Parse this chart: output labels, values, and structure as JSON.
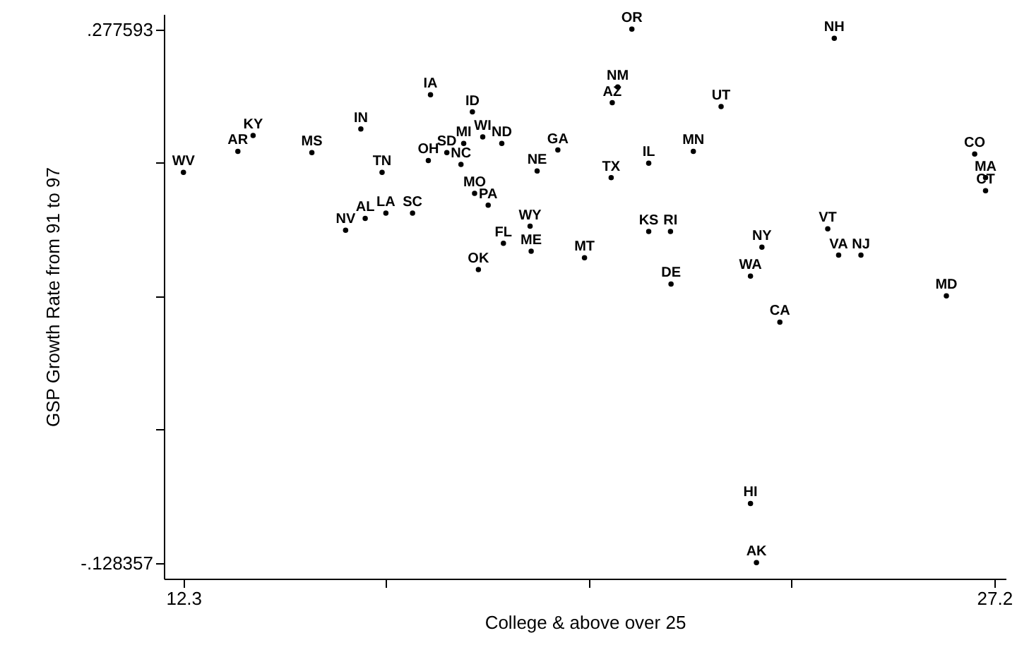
{
  "chart_data": {
    "type": "scatter",
    "xlabel": "College & above over 25",
    "ylabel": "GSP Growth Rate from 91 to 97",
    "xlim": [
      11.94,
      27.41
    ],
    "ylim": [
      -0.1402,
      0.2894
    ],
    "xticks": [
      12.3,
      {
        "value": 16.025,
        "label": null
      },
      {
        "value": 19.75,
        "label": null
      },
      {
        "value": 23.475,
        "label": null
      },
      27.2
    ],
    "yticks": [
      {
        "value": -0.128357,
        "label": "-.128357"
      },
      {
        "value": -0.0268695,
        "label": null
      },
      {
        "value": 0.074618,
        "label": null
      },
      {
        "value": 0.1761055,
        "label": null
      },
      {
        "value": 0.277593,
        "label": ".277593"
      }
    ],
    "grid": false,
    "marker": "circle",
    "series": [
      {
        "color": "#000000",
        "x": [
          12.3,
          13.3,
          13.58,
          14.66,
          15.56,
          15.95,
          15.28,
          15.64,
          16.02,
          16.51,
          16.84,
          17.61,
          16.8,
          17.14,
          17.45,
          17.8,
          17.4,
          18.15,
          17.65,
          17.9,
          17.72,
          19.18,
          18.8,
          18.67,
          18.18,
          18.69,
          19.67,
          20.54,
          20.28,
          20.18,
          20.16,
          20.85,
          22.18,
          21.67,
          20.85,
          21.25,
          21.26,
          22.93,
          22.72,
          23.26,
          22.72,
          22.83,
          24.26,
          24.14,
          24.34,
          24.75,
          26.32,
          26.84,
          27.04,
          27.04
        ],
        "values": [
          0.169,
          0.185,
          0.197,
          0.184,
          0.202,
          0.169,
          0.125,
          0.134,
          0.138,
          0.138,
          0.228,
          0.215,
          0.178,
          0.184,
          0.191,
          0.196,
          0.175,
          0.191,
          0.153,
          0.144,
          0.095,
          0.186,
          0.17,
          0.128,
          0.115,
          0.109,
          0.104,
          0.278,
          0.234,
          0.222,
          0.165,
          0.176,
          0.219,
          0.185,
          0.124,
          0.124,
          0.084,
          0.112,
          0.09,
          0.055,
          -0.083,
          -0.128,
          0.271,
          0.126,
          0.106,
          0.106,
          0.075,
          0.183,
          0.165,
          0.155
        ],
        "value_labels": [
          "WV",
          "AR",
          "KY",
          "MS",
          "IN",
          "TN",
          "NV",
          "AL",
          "LA",
          "SC",
          "IA",
          "ID",
          "OH",
          "SD",
          "MI",
          "WI",
          "NC",
          "ND",
          "MO",
          "PA",
          "OK",
          "GA",
          "NE",
          "WY",
          "FL",
          "ME",
          "MT",
          "OR",
          "NM",
          "AZ",
          "TX",
          "IL",
          "UT",
          "MN",
          "KS",
          "RI",
          "DE",
          "NY",
          "WA",
          "CA",
          "HI",
          "AK",
          "NH",
          "VT",
          "VA",
          "NJ",
          "MD",
          "CO",
          "MA",
          "CT"
        ]
      }
    ]
  }
}
